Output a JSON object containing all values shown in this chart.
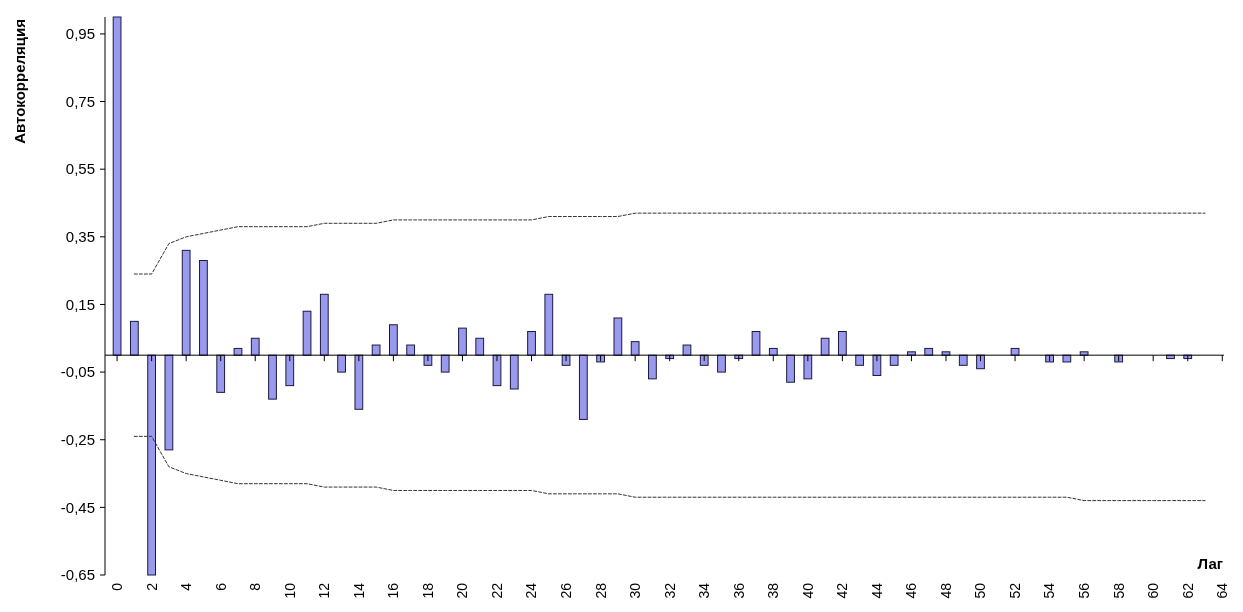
{
  "chart_data": {
    "type": "bar",
    "xlabel": "Лаг",
    "ylabel": "Автокорреляция",
    "x": [
      0,
      1,
      2,
      3,
      4,
      5,
      6,
      7,
      8,
      9,
      10,
      11,
      12,
      13,
      14,
      15,
      16,
      17,
      18,
      19,
      20,
      21,
      22,
      23,
      24,
      25,
      26,
      27,
      28,
      29,
      30,
      31,
      32,
      33,
      34,
      35,
      36,
      37,
      38,
      39,
      40,
      41,
      42,
      43,
      44,
      45,
      46,
      47,
      48,
      49,
      50,
      51,
      52,
      53,
      54,
      55,
      56,
      57,
      58,
      59,
      60,
      61,
      62,
      63
    ],
    "xlim": [
      -0.7,
      64.1
    ],
    "xticks": [
      0,
      2,
      4,
      6,
      8,
      10,
      12,
      14,
      16,
      18,
      20,
      22,
      24,
      26,
      28,
      30,
      32,
      34,
      36,
      38,
      40,
      42,
      44,
      46,
      48,
      50,
      52,
      54,
      56,
      58,
      60,
      62,
      64
    ],
    "ylim": [
      -0.65,
      1.0
    ],
    "yticks": [
      {
        "value": 0.95,
        "label": "0,95"
      },
      {
        "value": 0.75,
        "label": "0,75"
      },
      {
        "value": 0.55,
        "label": "0,55"
      },
      {
        "value": 0.35,
        "label": "0,35"
      },
      {
        "value": 0.15,
        "label": "0,15"
      },
      {
        "value": -0.05,
        "label": "-0,05"
      },
      {
        "value": -0.25,
        "label": "-0,25"
      },
      {
        "value": -0.45,
        "label": "-0,45"
      },
      {
        "value": -0.65,
        "label": "-0,65"
      }
    ],
    "series": [
      {
        "color": "#9999ee",
        "values": [
          1,
          0.1,
          -0.65,
          -0.28,
          0.31,
          0.28,
          -0.11,
          0.02,
          0.05,
          -0.13,
          -0.09,
          0.13,
          0.18,
          -0.05,
          -0.16,
          0.03,
          0.09,
          0.03,
          -0.03,
          -0.05,
          0.08,
          0.05,
          -0.09,
          -0.1,
          0.07,
          0.18,
          -0.03,
          -0.19,
          -0.02,
          0.11,
          0.04,
          -0.07,
          -0.01,
          0.03,
          -0.03,
          -0.05,
          -0.01,
          0.07,
          0.02,
          -0.08,
          -0.07,
          0.05,
          0.07,
          -0.03,
          -0.06,
          -0.03,
          0.01,
          0.02,
          0.01,
          -0.03,
          -0.04,
          0,
          0.02,
          0,
          -0.02,
          -0.02,
          0.01,
          0,
          -0.02,
          0,
          0,
          -0.01,
          -0.01,
          0
        ]
      },
      {
        "type": "line",
        "color": "#333333",
        "line_style": "dashed",
        "x": [
          1,
          2,
          3,
          4,
          5,
          6,
          7,
          8,
          9,
          10,
          11,
          12,
          13,
          14,
          15,
          16,
          17,
          18,
          19,
          20,
          21,
          22,
          23,
          24,
          25,
          26,
          27,
          28,
          29,
          30,
          31,
          32,
          33,
          34,
          35,
          36,
          37,
          38,
          39,
          40,
          41,
          42,
          43,
          44,
          45,
          46,
          47,
          48,
          49,
          50,
          51,
          52,
          53,
          54,
          55,
          56,
          57,
          58,
          59,
          60,
          61,
          62,
          63
        ],
        "values": [
          0.24,
          0.24,
          0.33,
          0.35,
          0.36,
          0.37,
          0.38,
          0.38,
          0.38,
          0.38,
          0.38,
          0.39,
          0.39,
          0.39,
          0.39,
          0.4,
          0.4,
          0.4,
          0.4,
          0.4,
          0.4,
          0.4,
          0.4,
          0.4,
          0.41,
          0.41,
          0.41,
          0.41,
          0.41,
          0.42,
          0.42,
          0.42,
          0.42,
          0.42,
          0.42,
          0.42,
          0.42,
          0.42,
          0.42,
          0.42,
          0.42,
          0.42,
          0.42,
          0.42,
          0.42,
          0.42,
          0.42,
          0.42,
          0.42,
          0.42,
          0.42,
          0.42,
          0.42,
          0.42,
          0.42,
          0.42,
          0.42,
          0.42,
          0.42,
          0.42,
          0.42,
          0.42,
          0.42
        ]
      },
      {
        "type": "line",
        "color": "#333333",
        "line_style": "dashed",
        "x": [
          1,
          2,
          3,
          4,
          5,
          6,
          7,
          8,
          9,
          10,
          11,
          12,
          13,
          14,
          15,
          16,
          17,
          18,
          19,
          20,
          21,
          22,
          23,
          24,
          25,
          26,
          27,
          28,
          29,
          30,
          31,
          32,
          33,
          34,
          35,
          36,
          37,
          38,
          39,
          40,
          41,
          42,
          43,
          44,
          45,
          46,
          47,
          48,
          49,
          50,
          51,
          52,
          53,
          54,
          55,
          56,
          57,
          58,
          59,
          60,
          61,
          62,
          63
        ],
        "values": [
          -0.24,
          -0.24,
          -0.33,
          -0.35,
          -0.36,
          -0.37,
          -0.38,
          -0.38,
          -0.38,
          -0.38,
          -0.38,
          -0.39,
          -0.39,
          -0.39,
          -0.39,
          -0.4,
          -0.4,
          -0.4,
          -0.4,
          -0.4,
          -0.4,
          -0.4,
          -0.4,
          -0.4,
          -0.41,
          -0.41,
          -0.41,
          -0.41,
          -0.41,
          -0.42,
          -0.42,
          -0.42,
          -0.42,
          -0.42,
          -0.42,
          -0.42,
          -0.42,
          -0.42,
          -0.42,
          -0.42,
          -0.42,
          -0.42,
          -0.42,
          -0.42,
          -0.42,
          -0.42,
          -0.42,
          -0.42,
          -0.42,
          -0.42,
          -0.42,
          -0.42,
          -0.42,
          -0.42,
          -0.42,
          -0.43,
          -0.43,
          -0.43,
          -0.43,
          -0.43,
          -0.43,
          -0.43,
          -0.43
        ]
      }
    ]
  }
}
